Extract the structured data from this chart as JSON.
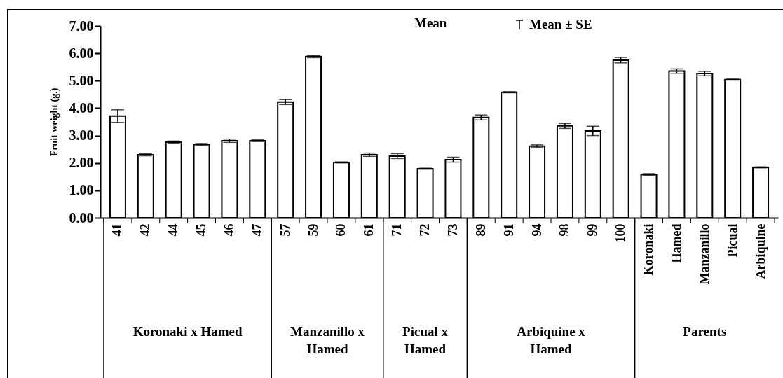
{
  "chart_data": {
    "type": "bar",
    "ylabel": "Fruit weight (g.)",
    "categories": [
      "41",
      "42",
      "44",
      "45",
      "46",
      "47",
      "57",
      "59",
      "60",
      "61",
      "71",
      "72",
      "73",
      "89",
      "91",
      "94",
      "98",
      "99",
      "100",
      "Koronaki",
      "Hamed",
      "Manzanillo",
      "Picual",
      "Arbiquine"
    ],
    "series": [
      {
        "name": "Mean",
        "color": "#ffffff",
        "values": [
          3.71,
          2.3,
          2.76,
          2.67,
          2.81,
          2.81,
          4.22,
          5.88,
          2.02,
          2.3,
          2.25,
          1.79,
          2.12,
          3.66,
          4.58,
          2.61,
          3.35,
          3.17,
          5.75,
          1.58,
          5.35,
          5.26,
          5.04,
          1.84
        ],
        "errors": [
          0.23,
          0.04,
          0.04,
          0.04,
          0.06,
          0.03,
          0.09,
          0.04,
          0.02,
          0.06,
          0.09,
          0.02,
          0.09,
          0.09,
          0.02,
          0.05,
          0.09,
          0.17,
          0.1,
          0.03,
          0.08,
          0.08,
          0.02,
          0.02
        ]
      }
    ],
    "ylim": [
      0,
      7
    ],
    "yticks": [
      {
        "value": 0,
        "label": "0.00"
      },
      {
        "value": 1,
        "label": "1.00"
      },
      {
        "value": 2,
        "label": "2.00"
      },
      {
        "value": 3,
        "label": "3.00"
      },
      {
        "value": 4,
        "label": "4.00"
      },
      {
        "value": 5,
        "label": "5.00"
      },
      {
        "value": 6,
        "label": "6.00"
      },
      {
        "value": 7,
        "label": "7.00"
      }
    ],
    "legend": "top",
    "annotations": [
      "Mean ± SE",
      "Koronaki x Hamed",
      "Manzanillo x Hamed",
      "Picual x Hamed",
      "Arbiquine x Hamed",
      "Parents"
    ]
  }
}
